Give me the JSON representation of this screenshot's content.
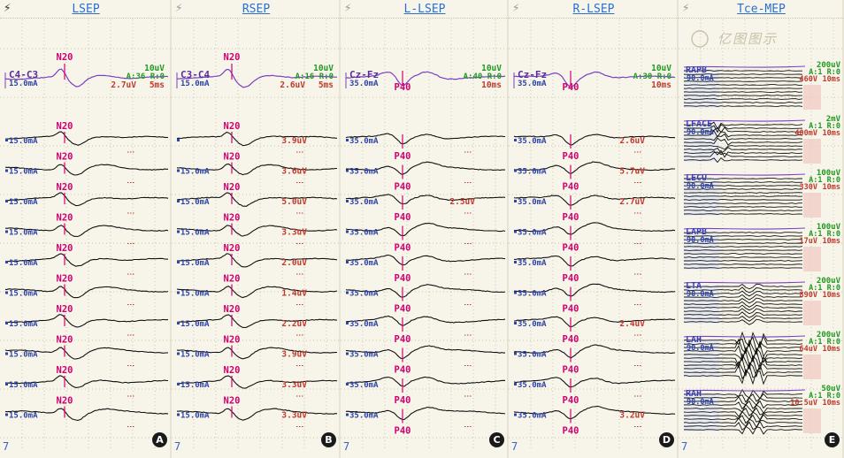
{
  "icons": {
    "bolt": "lightning-bolt-icon"
  },
  "colors": {
    "title": "#2a6fd0",
    "mA": "#2f44a8",
    "peak": "#d0006f",
    "purple": "#7a3fc4",
    "green": "#1f9a20",
    "red": "#c0392b",
    "bolt_dark": "#333333",
    "bolt_light": "#999999"
  },
  "panels": [
    {
      "id": "A",
      "title": "LSEP",
      "bolt_color": "#333333",
      "top_label": "C4-C3",
      "top_mA": "15.0mA",
      "top_peak": "N20",
      "scale_top": "10uV",
      "scale_mid": "A:36 R:0",
      "amp": "2.7uV",
      "time": "5ms",
      "traces": [
        {
          "mA": "15.0mA",
          "peak": "N20",
          "amp": ""
        },
        {
          "mA": "15.0mA",
          "peak": "N20",
          "amp": ""
        },
        {
          "mA": "15.0mA",
          "peak": "N20",
          "amp": ""
        },
        {
          "mA": "15.0mA",
          "peak": "N20",
          "amp": ""
        },
        {
          "mA": "15.0mA",
          "peak": "N20",
          "amp": ""
        },
        {
          "mA": "15.0mA",
          "peak": "N20",
          "amp": ""
        },
        {
          "mA": "15.0mA",
          "peak": "N20",
          "amp": ""
        },
        {
          "mA": "15.0mA",
          "peak": "N20",
          "amp": ""
        },
        {
          "mA": "15.0mA",
          "peak": "N20",
          "amp": ""
        },
        {
          "mA": "15.0mA",
          "peak": "N20",
          "amp": ""
        }
      ]
    },
    {
      "id": "B",
      "title": "RSEP",
      "bolt_color": "#999999",
      "top_label": "C3-C4",
      "top_mA": "15.0mA",
      "top_peak": "N20",
      "scale_top": "10uV",
      "scale_mid": "A:16 R:0",
      "amp": "2.6uV",
      "time": "5ms",
      "traces": [
        {
          "mA": "",
          "peak": "N20",
          "amp": "3.9uV"
        },
        {
          "mA": "15.0mA",
          "peak": "N20",
          "amp": "3.6uV"
        },
        {
          "mA": "15.0mA",
          "peak": "N20",
          "amp": "5.0uV"
        },
        {
          "mA": "15.0mA",
          "peak": "N20",
          "amp": "3.3uV"
        },
        {
          "mA": "15.0mA",
          "peak": "N20",
          "amp": "2.0uV"
        },
        {
          "mA": "15.0mA",
          "peak": "N20",
          "amp": "1.4uV"
        },
        {
          "mA": "15.0mA",
          "peak": "N20",
          "amp": "2.2uV"
        },
        {
          "mA": "15.0mA",
          "peak": "N20",
          "amp": "3.9uV"
        },
        {
          "mA": "15.0mA",
          "peak": "N20",
          "amp": "3.3uV"
        },
        {
          "mA": "15.0mA",
          "peak": "N20",
          "amp": "3.3uV"
        }
      ]
    },
    {
      "id": "C",
      "title": "L-LSEP",
      "bolt_color": "#999999",
      "top_label": "Cz-Fz",
      "top_mA": "35.0mA",
      "top_peak": "P40",
      "scale_top": "10uV",
      "scale_mid": "A:40 R:0",
      "amp": "",
      "time": "10ms",
      "traces": [
        {
          "mA": "35.0mA",
          "peak": "P40",
          "amp": ""
        },
        {
          "mA": "35.0mA",
          "peak": "P40",
          "amp": ""
        },
        {
          "mA": "35.0mA",
          "peak": "P40",
          "amp": "2.5uV"
        },
        {
          "mA": "35.0mA",
          "peak": "P40",
          "amp": ""
        },
        {
          "mA": "35.0mA",
          "peak": "P40",
          "amp": ""
        },
        {
          "mA": "35.0mA",
          "peak": "P40",
          "amp": ""
        },
        {
          "mA": "35.0mA",
          "peak": "P40",
          "amp": ""
        },
        {
          "mA": "35.0mA",
          "peak": "P40",
          "amp": ""
        },
        {
          "mA": "35.0mA",
          "peak": "P40",
          "amp": ""
        },
        {
          "mA": "35.0mA",
          "peak": "P40",
          "amp": ""
        }
      ]
    },
    {
      "id": "D",
      "title": "R-LSEP",
      "bolt_color": "#999999",
      "top_label": "Cz-Fz",
      "top_mA": "35.0mA",
      "top_peak": "P40",
      "scale_top": "10uV",
      "scale_mid": "A:30 R:0",
      "amp": "",
      "time": "10ms",
      "traces": [
        {
          "mA": "35.0mA",
          "peak": "P40",
          "amp": "2.6uV"
        },
        {
          "mA": "35.0mA",
          "peak": "P40",
          "amp": "5.7uV"
        },
        {
          "mA": "35.0mA",
          "peak": "P40",
          "amp": "2.7uV"
        },
        {
          "mA": "35.0mA",
          "peak": "P40",
          "amp": ""
        },
        {
          "mA": "35.0mA",
          "peak": "P40",
          "amp": ""
        },
        {
          "mA": "35.0mA",
          "peak": "P40",
          "amp": ""
        },
        {
          "mA": "35.0mA",
          "peak": "P40",
          "amp": "2.4uV"
        },
        {
          "mA": "35.0mA",
          "peak": "P40",
          "amp": ""
        },
        {
          "mA": "35.0mA",
          "peak": "P40",
          "amp": ""
        },
        {
          "mA": "35.0mA",
          "peak": "P40",
          "amp": "3.2uV"
        }
      ]
    }
  ],
  "mep": {
    "id": "E",
    "title": "Tce-MEP",
    "bolt_color": "#999999",
    "watermark": "亿图图示",
    "blocks": [
      {
        "name": "RAPB",
        "mA": "90.0mA",
        "scale": "200uV",
        "mid": "A:1 R:0",
        "amp": "460V",
        "time": "10ms"
      },
      {
        "name": "LFACE",
        "mA": "90.0mA",
        "scale": "2mV",
        "mid": "A:1 R:0",
        "amp": "400mV",
        "time": "10ms"
      },
      {
        "name": "LECU",
        "mA": "90.0mA",
        "scale": "100uV",
        "mid": "A:1 R:0",
        "amp": "330V",
        "time": "10ms"
      },
      {
        "name": "LAPB",
        "mA": "90.0mA",
        "scale": "100uV",
        "mid": "A:1 R:0",
        "amp": "17uV",
        "time": "10ms"
      },
      {
        "name": "LTA",
        "mA": "90.0mA",
        "scale": "200uV",
        "mid": "A:1 R:0",
        "amp": "890V",
        "time": "10ms"
      },
      {
        "name": "LAH",
        "mA": "90.0mA",
        "scale": "200uV",
        "mid": "A:1 R:0",
        "amp": "64uV",
        "time": "10ms"
      },
      {
        "name": "RAH",
        "mA": "90.0mA",
        "scale": "50uV",
        "mid": "A:1 R:0",
        "amp": "10.5uV",
        "time": "10ms"
      }
    ]
  },
  "footer": {
    "seven": "7"
  }
}
